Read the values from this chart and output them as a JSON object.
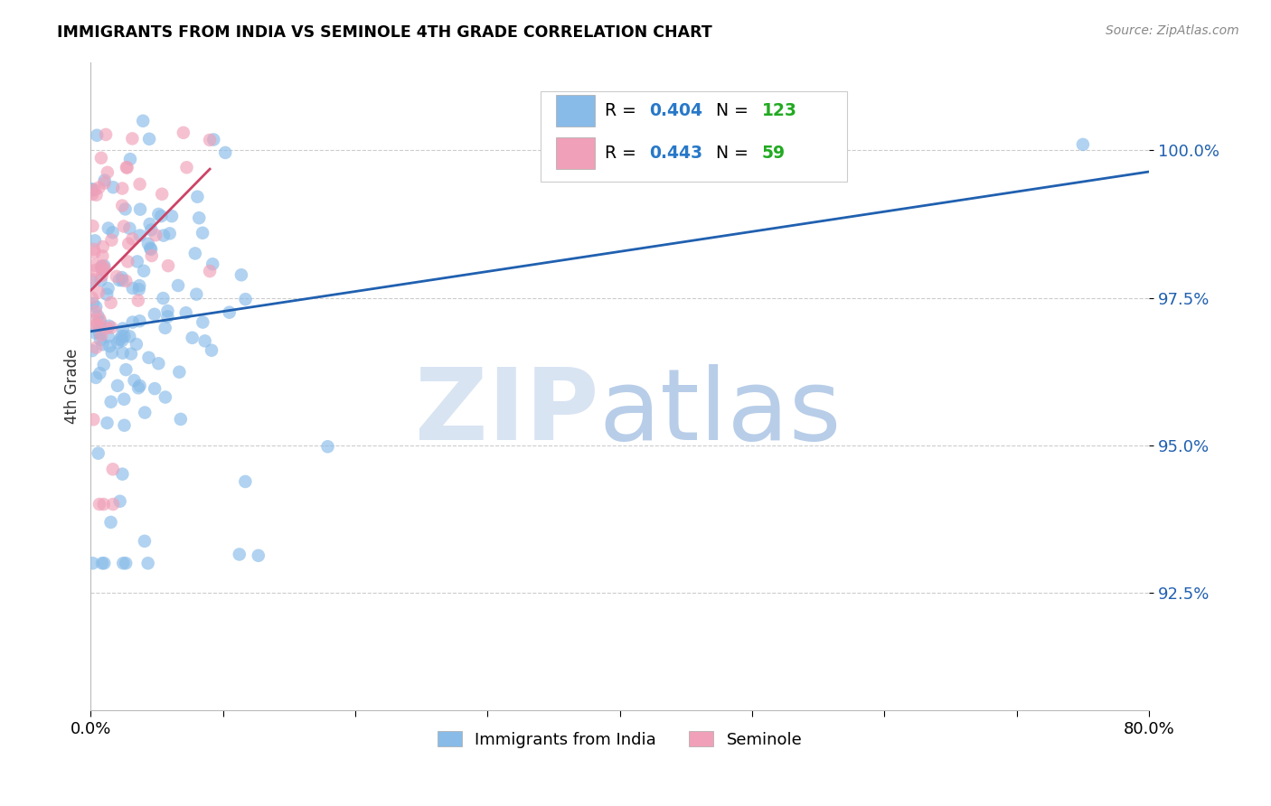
{
  "title": "IMMIGRANTS FROM INDIA VS SEMINOLE 4TH GRADE CORRELATION CHART",
  "source": "Source: ZipAtlas.com",
  "ylabel": "4th Grade",
  "y_tick_vals": [
    0.925,
    0.95,
    0.975,
    1.0
  ],
  "y_tick_labels": [
    "92.5%",
    "95.0%",
    "97.5%",
    "100.0%"
  ],
  "x_lim": [
    0.0,
    0.8
  ],
  "y_lim": [
    0.905,
    1.015
  ],
  "blue_R": 0.404,
  "blue_N": 123,
  "pink_R": 0.443,
  "pink_N": 59,
  "blue_color": "#88BBE8",
  "pink_color": "#F0A0B8",
  "blue_line_color": "#2060B0",
  "pink_line_color": "#CC4466",
  "legend_R_color": "#2878C8",
  "legend_N_color": "#22AA22",
  "seed_blue": 12345,
  "seed_pink": 67890
}
